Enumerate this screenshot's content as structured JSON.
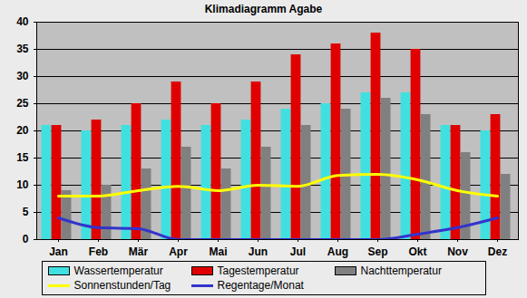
{
  "chart_data": {
    "type": "bar",
    "title": "Klimadiagramm Agabe",
    "categories": [
      "Jan",
      "Feb",
      "Mär",
      "Apr",
      "Mai",
      "Jun",
      "Jul",
      "Aug",
      "Sep",
      "Okt",
      "Nov",
      "Dez"
    ],
    "series": [
      {
        "name": "Wassertemperatur",
        "type": "bar",
        "color": "#40e0e0",
        "values": [
          21,
          20,
          21,
          22,
          21,
          22,
          24,
          25,
          27,
          27,
          21,
          20
        ]
      },
      {
        "name": "Tagestemperatur",
        "type": "bar",
        "color": "#e00000",
        "values": [
          21,
          22,
          25,
          29,
          25,
          29,
          34,
          36,
          38,
          35,
          21,
          23
        ]
      },
      {
        "name": "Nachttemperatur",
        "type": "bar",
        "color": "#808080",
        "values": [
          9,
          10,
          13,
          17,
          13,
          17,
          21,
          24,
          26,
          23,
          16,
          12
        ]
      },
      {
        "name": "Sonnenstunden/Tag",
        "type": "line",
        "color": "#ffff00",
        "values": [
          8,
          8,
          9,
          9.8,
          9,
          10,
          9.8,
          11.8,
          12,
          11,
          9,
          8
        ]
      },
      {
        "name": "Regentage/Monat",
        "type": "line",
        "color": "#3333cc",
        "values": [
          4,
          2.2,
          2,
          0,
          0,
          0,
          0,
          0,
          0,
          1,
          2.2,
          4
        ]
      }
    ],
    "ylim": [
      0,
      40
    ],
    "yticks": [
      0,
      5,
      10,
      15,
      20,
      25,
      30,
      35,
      40
    ],
    "grid": true,
    "legend": "bottom"
  }
}
